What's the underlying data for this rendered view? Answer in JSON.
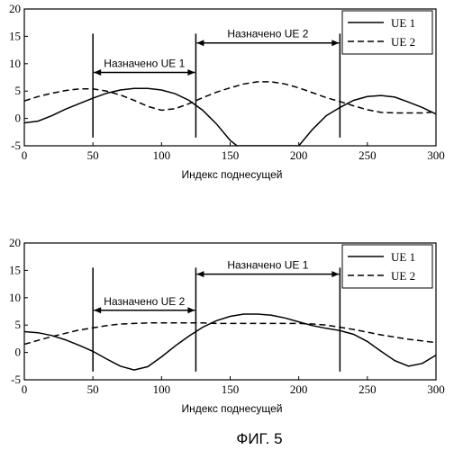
{
  "figure_caption": "ФИГ. 5",
  "chart_data": [
    {
      "type": "line",
      "xlabel": "Индекс поднесущей",
      "ylabel": "",
      "xlim": [
        0,
        300
      ],
      "ylim": [
        -5,
        20
      ],
      "xticks": [
        0,
        50,
        100,
        150,
        200,
        250,
        300
      ],
      "yticks": [
        -5,
        0,
        5,
        10,
        15,
        20
      ],
      "grid": false,
      "legend_position": "top-right",
      "series": [
        {
          "name": "UE 1",
          "style": "solid",
          "x": [
            0,
            10,
            20,
            30,
            40,
            50,
            60,
            70,
            80,
            90,
            100,
            110,
            120,
            130,
            140,
            150,
            155,
            200,
            210,
            220,
            230,
            240,
            250,
            260,
            270,
            280,
            290,
            300
          ],
          "y": [
            -0.8,
            -0.5,
            0.5,
            1.7,
            2.7,
            3.7,
            4.6,
            5.2,
            5.5,
            5.5,
            5.2,
            4.5,
            3.3,
            1.5,
            -1.0,
            -4.0,
            -5.0,
            -5.0,
            -2.0,
            0.5,
            2.0,
            3.3,
            4.0,
            4.2,
            3.9,
            3.0,
            2.0,
            0.8
          ]
        },
        {
          "name": "UE 2",
          "style": "dashed",
          "x": [
            0,
            10,
            20,
            30,
            40,
            50,
            60,
            70,
            80,
            90,
            100,
            110,
            120,
            130,
            140,
            150,
            160,
            170,
            180,
            190,
            200,
            210,
            220,
            230,
            240,
            250,
            260,
            270,
            280,
            290,
            300
          ],
          "y": [
            3.2,
            4.0,
            4.6,
            5.1,
            5.4,
            5.4,
            5.0,
            4.3,
            3.3,
            2.2,
            1.5,
            1.8,
            2.7,
            3.8,
            4.8,
            5.6,
            6.3,
            6.7,
            6.7,
            6.3,
            5.6,
            4.7,
            3.8,
            3.1,
            2.3,
            1.6,
            1.1,
            1.0,
            1.0,
            1.0,
            1.2
          ]
        }
      ],
      "markers": [
        50,
        125,
        230
      ],
      "annotations": [
        {
          "label": "Назначено UE 1",
          "from": 50,
          "to": 125,
          "y": 8.4
        },
        {
          "label": "Назначено UE 2",
          "from": 125,
          "to": 230,
          "y": 13.8
        }
      ]
    },
    {
      "type": "line",
      "xlabel": "Индекс поднесущей",
      "ylabel": "",
      "xlim": [
        0,
        300
      ],
      "ylim": [
        -5,
        20
      ],
      "xticks": [
        0,
        50,
        100,
        150,
        200,
        250,
        300
      ],
      "yticks": [
        -5,
        0,
        5,
        10,
        15,
        20
      ],
      "grid": false,
      "legend_position": "top-right",
      "series": [
        {
          "name": "UE 1",
          "style": "solid",
          "x": [
            0,
            10,
            20,
            30,
            40,
            50,
            60,
            70,
            80,
            90,
            100,
            110,
            120,
            130,
            140,
            150,
            160,
            170,
            180,
            190,
            200,
            210,
            220,
            230,
            240,
            250,
            260,
            270,
            280,
            290,
            300
          ],
          "y": [
            3.8,
            3.6,
            3.1,
            2.3,
            1.3,
            0.2,
            -1.2,
            -2.5,
            -3.2,
            -2.6,
            -0.8,
            1.2,
            3.0,
            4.6,
            5.8,
            6.6,
            7.0,
            7.0,
            6.8,
            6.3,
            5.6,
            4.9,
            4.4,
            4.0,
            3.3,
            2.0,
            0.2,
            -1.5,
            -2.5,
            -2.0,
            -0.5
          ]
        },
        {
          "name": "UE 2",
          "style": "dashed",
          "x": [
            0,
            10,
            20,
            30,
            40,
            50,
            60,
            70,
            80,
            90,
            100,
            110,
            120,
            130,
            140,
            150,
            160,
            170,
            180,
            190,
            200,
            210,
            220,
            230,
            240,
            250,
            260,
            270,
            280,
            290,
            300
          ],
          "y": [
            1.5,
            2.2,
            2.9,
            3.5,
            4.1,
            4.5,
            4.9,
            5.2,
            5.3,
            5.4,
            5.4,
            5.4,
            5.4,
            5.4,
            5.3,
            5.3,
            5.3,
            5.3,
            5.3,
            5.3,
            5.3,
            5.2,
            5.0,
            4.6,
            4.2,
            3.7,
            3.2,
            2.8,
            2.4,
            2.1,
            1.8
          ]
        }
      ],
      "markers": [
        50,
        125,
        230
      ],
      "annotations": [
        {
          "label": "Назначено UE 2",
          "from": 50,
          "to": 125,
          "y": 7.7
        },
        {
          "label": "Назначено UE 1",
          "from": 125,
          "to": 230,
          "y": 14.3
        }
      ]
    }
  ]
}
